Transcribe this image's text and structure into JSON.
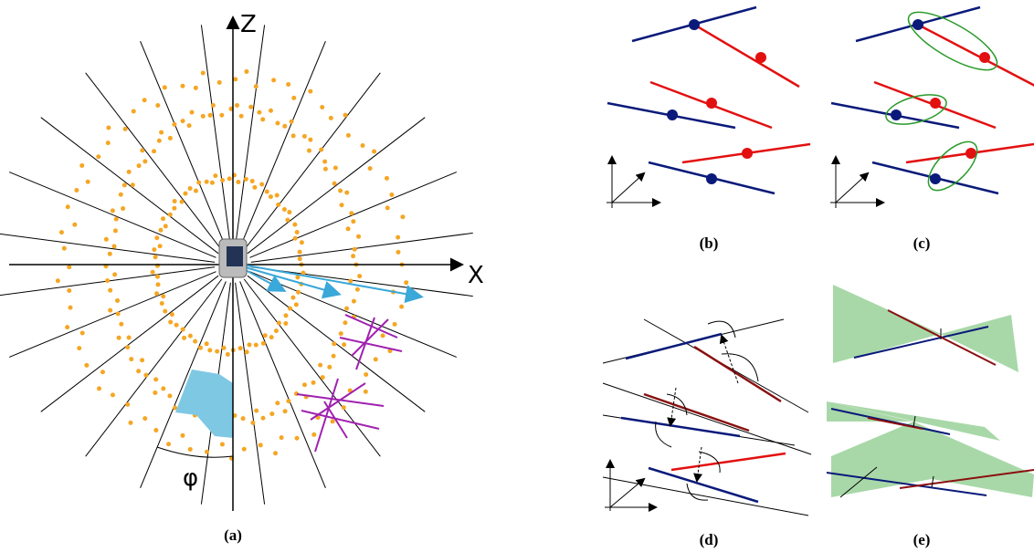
{
  "axes": {
    "z": "Z",
    "x": "X",
    "angle": "φ"
  },
  "panels": {
    "a": "(a)",
    "b": "(b)",
    "c": "(c)",
    "d": "(d)",
    "e": "(e)"
  }
}
